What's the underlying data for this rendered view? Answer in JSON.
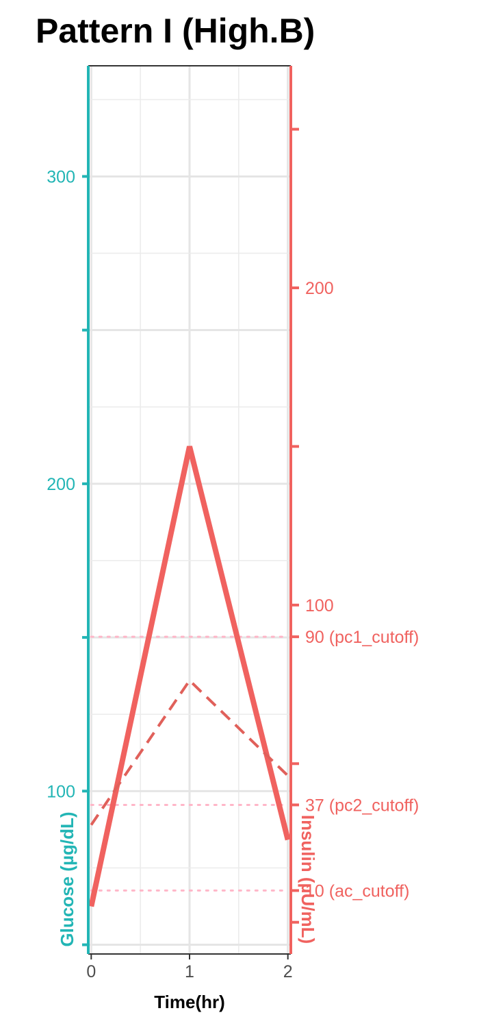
{
  "chart_data": {
    "type": "line",
    "title": "Pattern I (High.B)",
    "xlabel": "Time(hr)",
    "ylabel_left": "Glucose (µg/dL)",
    "ylabel_right": "Insulin (µU/mL)",
    "x": [
      0,
      1,
      2
    ],
    "x_ticks": [
      "0",
      "1",
      "2"
    ],
    "x_range": [
      -0.03,
      2.03
    ],
    "y_left_ticks": [
      "100",
      "200",
      "300"
    ],
    "y_left_range": [
      47,
      336
    ],
    "y_right_ticks": [
      "100",
      "200"
    ],
    "y_right_range": [
      -10,
      270
    ],
    "series": [
      {
        "axis": "right",
        "style": "solid",
        "color": "#f0625f",
        "values": [
          5,
          150,
          26
        ]
      },
      {
        "axis": "left",
        "style": "dashed",
        "color": "#e0605a",
        "values": [
          89,
          136,
          105
        ]
      }
    ],
    "cutoffs": [
      {
        "label": "90 (pc1_cutoff)",
        "value": 90
      },
      {
        "label": "37 (pc2_cutoff)",
        "value": 37
      },
      {
        "label": "10 (ac_cutoff)",
        "value": 10
      }
    ],
    "cutoff_color": "#ffb6c8",
    "left_axis_color": "#22b5b5",
    "right_axis_color": "#f0625f",
    "grid": true
  }
}
